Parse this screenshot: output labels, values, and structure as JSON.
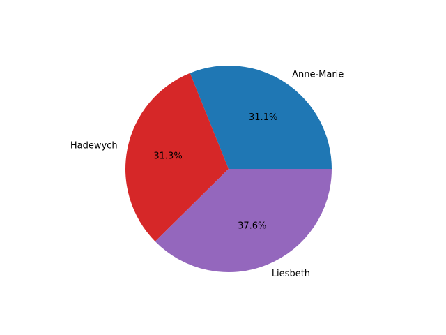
{
  "chart_data": {
    "type": "pie",
    "categories": [
      "Anne-Marie",
      "Hadewych",
      "Liesbeth"
    ],
    "values": [
      31.1,
      31.3,
      37.6
    ],
    "value_labels": [
      "31.1%",
      "31.3%",
      "37.6%"
    ],
    "colors": [
      "#1f77b4",
      "#d62728",
      "#9467bd"
    ],
    "start_angle_deg": 0,
    "direction": "counterclockwise",
    "title": ""
  }
}
